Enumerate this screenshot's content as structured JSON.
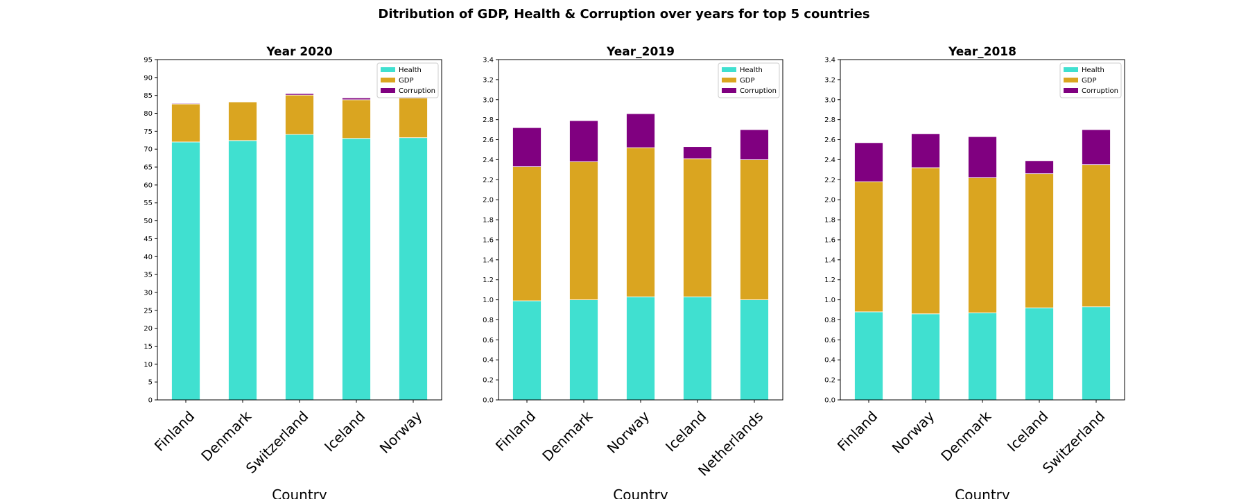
{
  "figure": {
    "title": "Ditribution of GDP, Health & Corruption over years for top 5 countries"
  },
  "legend": {
    "labels": [
      "Health",
      "GDP",
      "Corruption"
    ],
    "location": "top-right"
  },
  "colors": {
    "health": "#40e0d0",
    "gdp": "#daa520",
    "corruption": "#800080"
  },
  "chart_data": [
    {
      "type": "bar",
      "stacked": true,
      "title": "Year 2020",
      "xlabel": "Country",
      "ylabel": "",
      "categories": [
        "Finland",
        "Denmark",
        "Switzerland",
        "Iceland",
        "Norway"
      ],
      "series": [
        {
          "name": "Health",
          "values": [
            72.0,
            72.4,
            74.1,
            73.0,
            73.2
          ]
        },
        {
          "name": "GDP",
          "values": [
            10.6,
            10.8,
            11.0,
            10.8,
            11.1
          ]
        },
        {
          "name": "Corruption",
          "values": [
            0.2,
            0.1,
            0.4,
            0.5,
            0.3
          ]
        }
      ],
      "ylim": [
        0,
        95
      ],
      "yticks": [
        "0",
        "5",
        "10",
        "15",
        "20",
        "25",
        "30",
        "35",
        "40",
        "45",
        "50",
        "55",
        "60",
        "65",
        "70",
        "75",
        "80",
        "85",
        "90",
        "95"
      ],
      "grid": false,
      "legend": "top-right"
    },
    {
      "type": "bar",
      "stacked": true,
      "title": "Year_2019",
      "xlabel": "Country",
      "ylabel": "",
      "categories": [
        "Finland",
        "Denmark",
        "Norway",
        "Iceland",
        "Netherlands"
      ],
      "series": [
        {
          "name": "Health",
          "values": [
            0.99,
            1.0,
            1.03,
            1.03,
            1.0
          ]
        },
        {
          "name": "GDP",
          "values": [
            1.34,
            1.38,
            1.49,
            1.38,
            1.4
          ]
        },
        {
          "name": "Corruption",
          "values": [
            0.39,
            0.41,
            0.34,
            0.12,
            0.3
          ]
        }
      ],
      "ylim": [
        0,
        3.4
      ],
      "yticks": [
        "0.0",
        "0.2",
        "0.4",
        "0.6",
        "0.8",
        "1.0",
        "1.2",
        "1.4",
        "1.6",
        "1.8",
        "2.0",
        "2.2",
        "2.4",
        "2.6",
        "2.8",
        "3.0",
        "3.2",
        "3.4"
      ],
      "grid": false,
      "legend": "top-right"
    },
    {
      "type": "bar",
      "stacked": true,
      "title": "Year_2018",
      "xlabel": "Country",
      "ylabel": "",
      "categories": [
        "Finland",
        "Norway",
        "Denmark",
        "Iceland",
        "Switzerland"
      ],
      "series": [
        {
          "name": "Health",
          "values": [
            0.88,
            0.86,
            0.87,
            0.92,
            0.93
          ]
        },
        {
          "name": "GDP",
          "values": [
            1.3,
            1.46,
            1.35,
            1.34,
            1.42
          ]
        },
        {
          "name": "Corruption",
          "values": [
            0.39,
            0.34,
            0.41,
            0.13,
            0.35
          ]
        }
      ],
      "ylim": [
        0,
        3.4
      ],
      "yticks": [
        "0.0",
        "0.2",
        "0.4",
        "0.6",
        "0.8",
        "1.0",
        "1.2",
        "1.4",
        "1.6",
        "1.8",
        "2.0",
        "2.2",
        "2.4",
        "2.6",
        "2.8",
        "3.0",
        "3.2",
        "3.4"
      ],
      "grid": false,
      "legend": "top-right"
    }
  ]
}
